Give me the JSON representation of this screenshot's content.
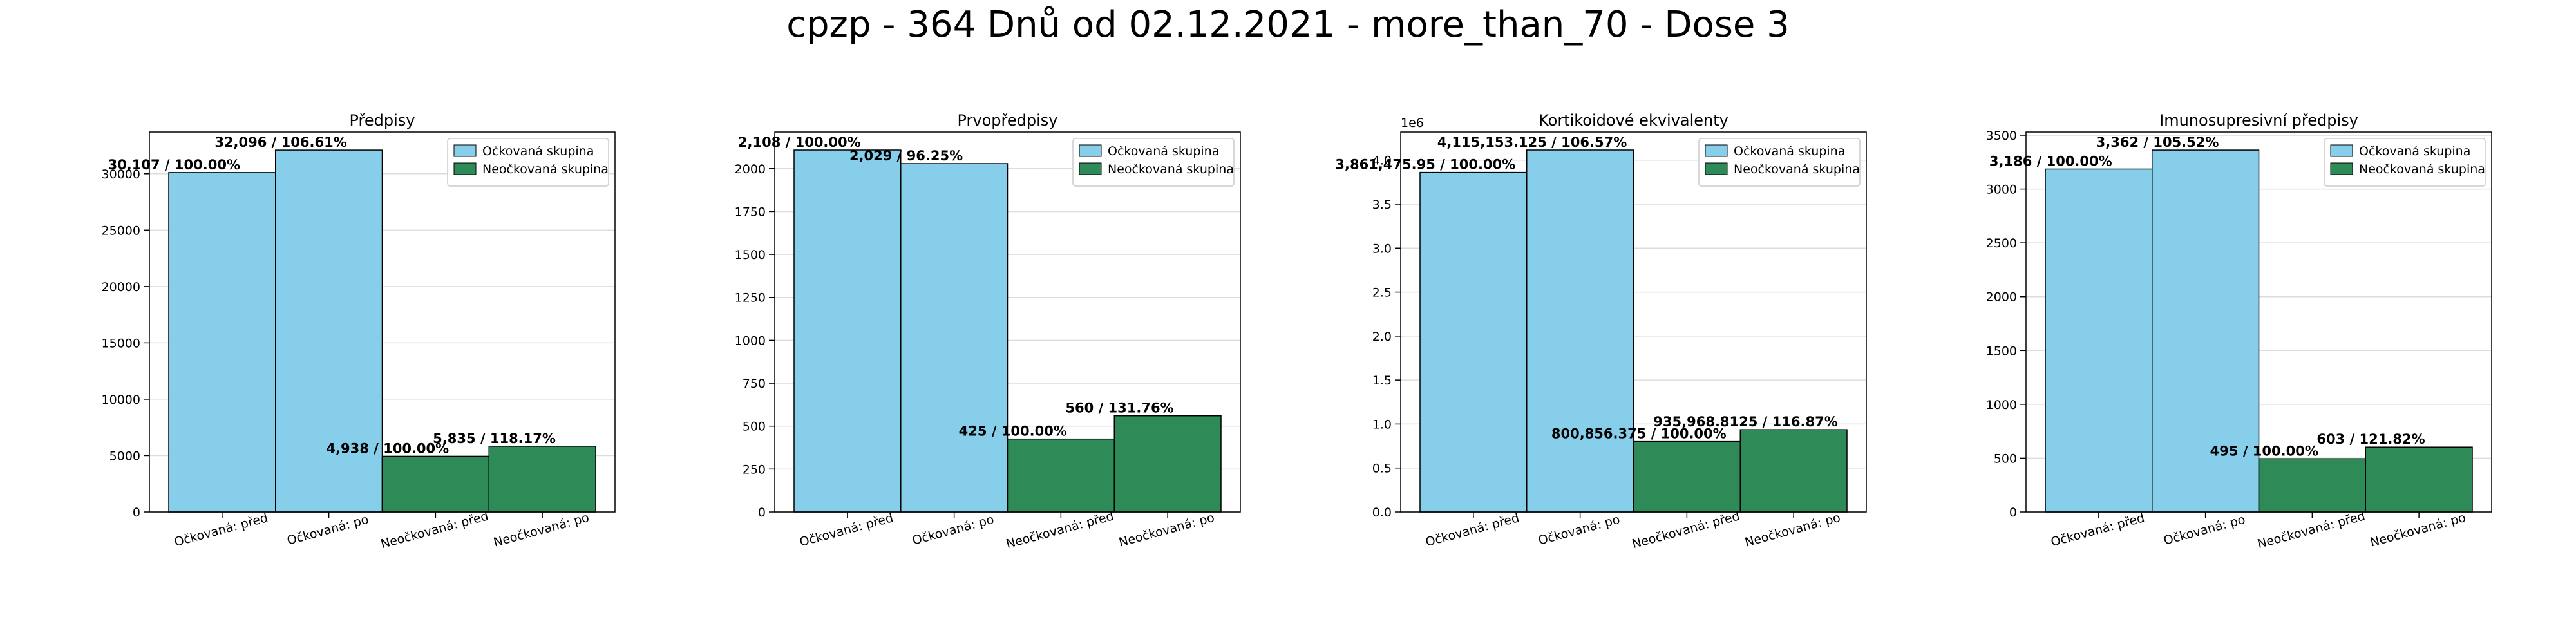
{
  "suptitle": "cpzp - 364 Dnů od 02.12.2021 - more_than_70 - Dose 3",
  "colors": {
    "vaccinated": "#87CEEB",
    "unvaccinated": "#2E8B57",
    "edge": "#000000",
    "grid": "#dddddd"
  },
  "legend_labels": [
    "Očkovaná skupina",
    "Neočkovaná skupina"
  ],
  "chart_data": [
    {
      "type": "bar",
      "title": "Předpisy",
      "categories": [
        "Očkovaná: před",
        "Očkovaná: po",
        "Neočkovaná: před",
        "Neočkovaná: po"
      ],
      "values": [
        30107,
        32096,
        4938,
        5835
      ],
      "bar_labels": [
        "30,107 / 100.00%",
        "32,096 / 106.61%",
        "4,938 / 100.00%",
        "5,835 / 118.17%"
      ],
      "yticks": [
        0,
        5000,
        10000,
        15000,
        20000,
        25000,
        30000
      ],
      "ytick_labels": [
        "0",
        "5000",
        "10000",
        "15000",
        "20000",
        "25000",
        "30000"
      ],
      "ylim": [
        0,
        33700
      ],
      "exponent_label": "",
      "legend_loc": "upper right",
      "grid": true
    },
    {
      "type": "bar",
      "title": "Prvopředpisy",
      "categories": [
        "Očkovaná: před",
        "Očkovaná: po",
        "Neočkovaná: před",
        "Neočkovaná: po"
      ],
      "values": [
        2108,
        2029,
        425,
        560
      ],
      "bar_labels": [
        "2,108 / 100.00%",
        "2,029 / 96.25%",
        "425 / 100.00%",
        "560 / 131.76%"
      ],
      "yticks": [
        0,
        250,
        500,
        750,
        1000,
        1250,
        1500,
        1750,
        2000
      ],
      "ytick_labels": [
        "0",
        "250",
        "500",
        "750",
        "1000",
        "1250",
        "1500",
        "1750",
        "2000"
      ],
      "ylim": [
        0,
        2213
      ],
      "exponent_label": "",
      "legend_loc": "upper right",
      "grid": true
    },
    {
      "type": "bar",
      "title": "Kortikoidové ekvivalenty",
      "categories": [
        "Očkovaná: před",
        "Očkovaná: po",
        "Neočkovaná: před",
        "Neočkovaná: po"
      ],
      "values": [
        3861475.95,
        4115153.125,
        800856.375,
        935968.8125
      ],
      "bar_labels": [
        "3,861,475.95 / 100.00%",
        "4,115,153.125 / 106.57%",
        "800,856.375 / 100.00%",
        "935,968.8125 / 116.87%"
      ],
      "yticks": [
        0,
        500000,
        1000000,
        1500000,
        2000000,
        2500000,
        3000000,
        3500000,
        4000000
      ],
      "ytick_labels": [
        "0.0",
        "0.5",
        "1.0",
        "1.5",
        "2.0",
        "2.5",
        "3.0",
        "3.5",
        "4.0"
      ],
      "ylim": [
        0,
        4320000
      ],
      "exponent_label": "1e6",
      "legend_loc": "upper right",
      "grid": true
    },
    {
      "type": "bar",
      "title": "Imunosupresivní předpisy",
      "categories": [
        "Očkovaná: před",
        "Očkovaná: po",
        "Neočkovaná: před",
        "Neočkovaná: po"
      ],
      "values": [
        3186,
        3362,
        495,
        603
      ],
      "bar_labels": [
        "3,186 / 100.00%",
        "3,362 / 105.52%",
        "495 / 100.00%",
        "603 / 121.82%"
      ],
      "yticks": [
        0,
        500,
        1000,
        1500,
        2000,
        2500,
        3000,
        3500
      ],
      "ytick_labels": [
        "0",
        "500",
        "1000",
        "1500",
        "2000",
        "2500",
        "3000",
        "3500"
      ],
      "ylim": [
        0,
        3530
      ],
      "exponent_label": "",
      "legend_loc": "upper right",
      "grid": true
    }
  ]
}
